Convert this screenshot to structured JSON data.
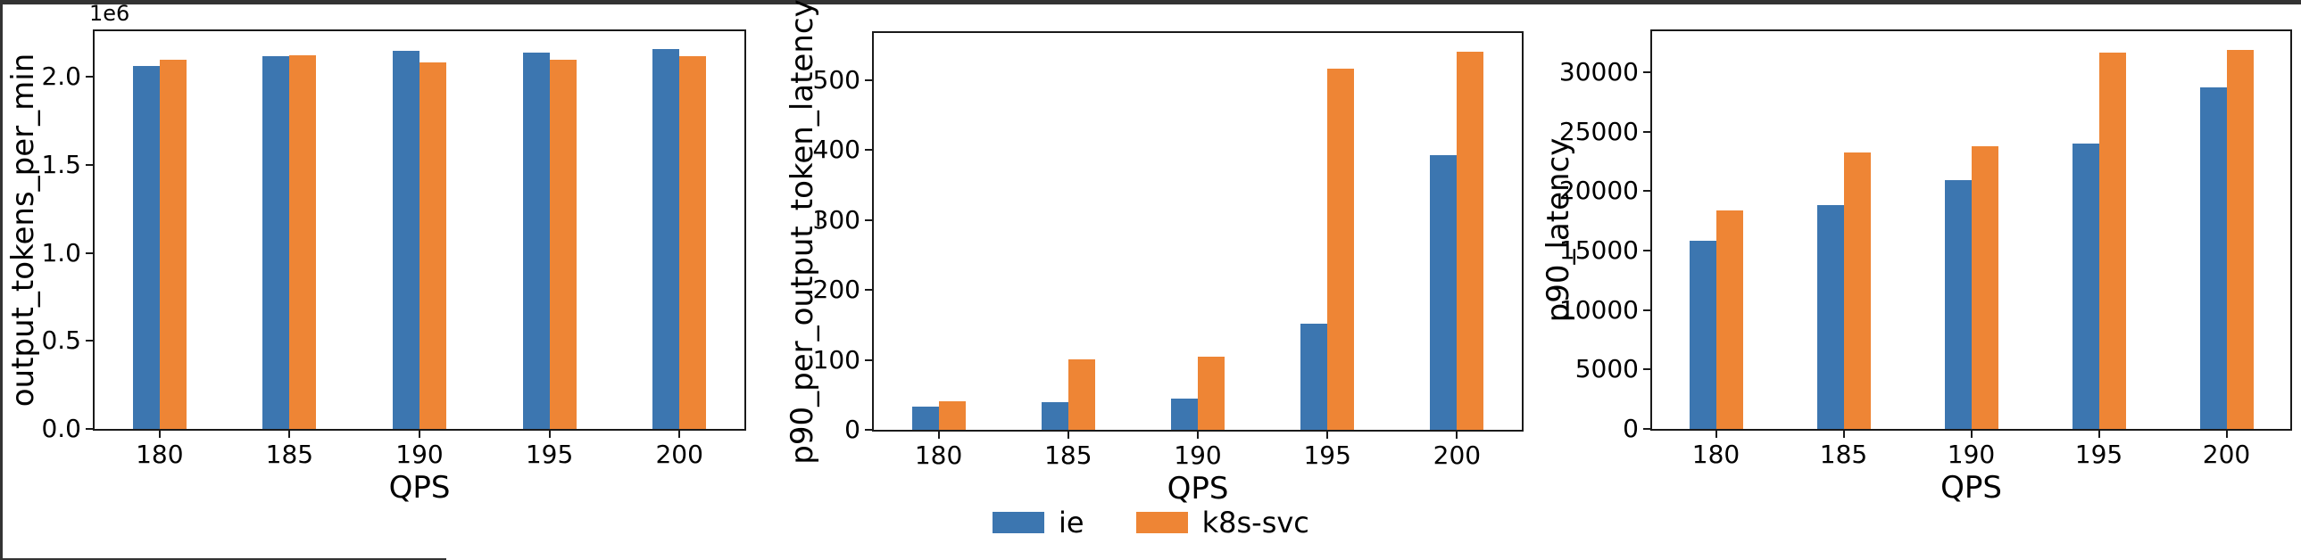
{
  "colors": {
    "ie": "#3c76b0",
    "k8s_svc": "#ee8535",
    "spine": "#1a1a1a",
    "screen_edge": "#333333",
    "figure_background": "#ffffff"
  },
  "legend": {
    "items": [
      {
        "label": "ie",
        "color": "#3c76b0"
      },
      {
        "label": "k8s-svc",
        "color": "#ee8535"
      }
    ]
  },
  "chart_data": [
    {
      "type": "bar",
      "title": "",
      "xlabel": "QPS",
      "ylabel": "output_tokens_per_min",
      "offset_text": "1e6",
      "categories": [
        "180",
        "185",
        "190",
        "195",
        "200"
      ],
      "series": [
        {
          "name": "ie",
          "color": "#3c76b0",
          "values": [
            2060000,
            2120000,
            2150000,
            2140000,
            2160000
          ]
        },
        {
          "name": "k8s-svc",
          "color": "#ee8535",
          "values": [
            2100000,
            2125000,
            2085000,
            2100000,
            2120000
          ]
        }
      ],
      "ylim": [
        0,
        2260000
      ],
      "yticks": {
        "labels": [
          "0.0",
          "0.5",
          "1.0",
          "1.5",
          "2.0"
        ],
        "values": [
          0,
          500000,
          1000000,
          1500000,
          2000000
        ]
      },
      "grid": false,
      "legend_position": "lower center (figure)"
    },
    {
      "type": "bar",
      "title": "",
      "xlabel": "QPS",
      "ylabel": "p90_per_output_token_latency",
      "offset_text": "",
      "categories": [
        "180",
        "185",
        "190",
        "195",
        "200"
      ],
      "series": [
        {
          "name": "ie",
          "color": "#3c76b0",
          "values": [
            33,
            39,
            45,
            152,
            392
          ]
        },
        {
          "name": "k8s-svc",
          "color": "#ee8535",
          "values": [
            41,
            101,
            105,
            516,
            540
          ]
        }
      ],
      "ylim": [
        0,
        567
      ],
      "yticks": {
        "labels": [
          "0",
          "100",
          "200",
          "300",
          "400",
          "500"
        ],
        "values": [
          0,
          100,
          200,
          300,
          400,
          500
        ]
      },
      "grid": false,
      "legend_position": "lower center (figure)"
    },
    {
      "type": "bar",
      "title": "",
      "xlabel": "QPS",
      "ylabel": "p90_latency",
      "offset_text": "",
      "categories": [
        "180",
        "185",
        "190",
        "195",
        "200"
      ],
      "series": [
        {
          "name": "ie",
          "color": "#3c76b0",
          "values": [
            15800,
            18800,
            20900,
            24000,
            28700
          ]
        },
        {
          "name": "k8s-svc",
          "color": "#ee8535",
          "values": [
            18400,
            23250,
            23750,
            31650,
            31850
          ]
        }
      ],
      "ylim": [
        0,
        33450
      ],
      "yticks": {
        "labels": [
          "0",
          "5000",
          "10000",
          "15000",
          "20000",
          "25000",
          "30000"
        ],
        "values": [
          0,
          5000,
          10000,
          15000,
          20000,
          25000,
          30000
        ]
      },
      "grid": false,
      "legend_position": "lower center (figure)"
    }
  ]
}
